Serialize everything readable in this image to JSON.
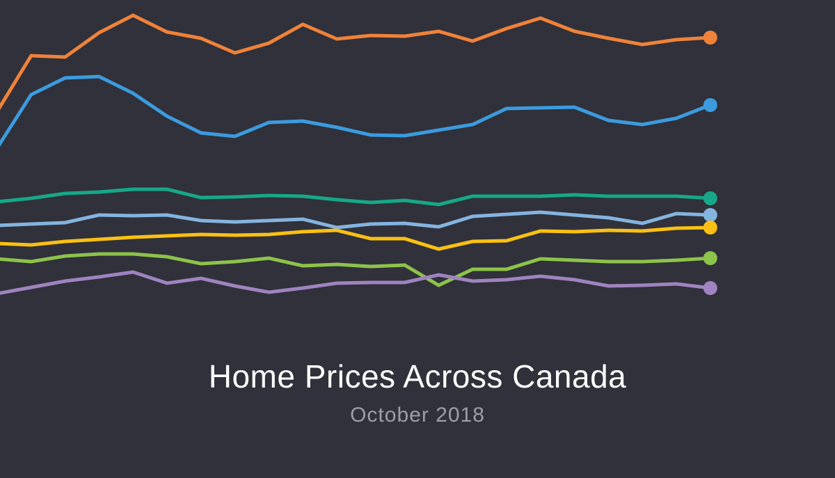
{
  "background": "#30313a",
  "title": "Home Prices Across Canada",
  "subtitle": "October 2018",
  "chart_data": {
    "type": "line",
    "title": "Home Prices Across Canada",
    "subtitle": "October 2018",
    "xlabel": "",
    "ylabel": "",
    "x": [
      0,
      1,
      2,
      3,
      4,
      5,
      6,
      7,
      8,
      9,
      10,
      11,
      12,
      13,
      14,
      15,
      16,
      17,
      18,
      19,
      20,
      21
    ],
    "ylim": [
      0,
      100
    ],
    "grid": false,
    "legend": "none",
    "series": [
      {
        "color": "#f0823a",
        "values": [
          68,
          84,
          83.6,
          90.6,
          95.6,
          90.8,
          89,
          84.8,
          87.6,
          93,
          88.8,
          89.8,
          89.6,
          91,
          88.2,
          91.8,
          94.8,
          91,
          89,
          87.2,
          88.6,
          89.2
        ]
      },
      {
        "color": "#3c9bdf",
        "values": [
          57.5,
          72.8,
          77.6,
          78,
          73.2,
          66.6,
          61.8,
          60.8,
          64.8,
          65.2,
          63.4,
          61.2,
          61,
          62.6,
          64.2,
          68.8,
          69,
          69.2,
          65.4,
          64.2,
          66,
          69.8
        ]
      },
      {
        "color": "#16a888",
        "values": [
          42,
          43,
          44.4,
          44.8,
          45.6,
          45.6,
          43.2,
          43.4,
          43.8,
          43.6,
          42.6,
          41.8,
          42.4,
          41.2,
          43.6,
          43.6,
          43.6,
          44,
          43.6,
          43.6,
          43.6,
          43
        ]
      },
      {
        "color": "#84b4e0",
        "values": [
          35.2,
          35.6,
          36,
          38.2,
          38,
          38.2,
          36.6,
          36.2,
          36.6,
          37,
          34.6,
          35.6,
          35.8,
          34.8,
          37.8,
          38.4,
          39,
          38.2,
          37.4,
          35.8,
          38.6,
          38.2
        ]
      },
      {
        "color": "#fbc013",
        "values": [
          30,
          29.6,
          30.6,
          31.2,
          31.8,
          32.2,
          32.6,
          32.4,
          32.6,
          33.4,
          33.8,
          31.4,
          31.4,
          28.4,
          30.6,
          30.8,
          33.6,
          33.4,
          33.8,
          33.6,
          34.4,
          34.6
        ]
      },
      {
        "color": "#8dc34a",
        "values": [
          25.6,
          24.8,
          26.4,
          27,
          27,
          26.2,
          24.2,
          24.8,
          25.8,
          23.6,
          24,
          23.4,
          23.8,
          18,
          22.6,
          22.6,
          25.6,
          25.2,
          24.8,
          24.8,
          25.2,
          25.8
        ]
      },
      {
        "color": "#a083c0",
        "values": [
          15.6,
          17.4,
          19.2,
          20.4,
          21.8,
          18.6,
          20,
          17.8,
          16,
          17.2,
          18.6,
          18.8,
          18.8,
          21,
          19.2,
          19.6,
          20.6,
          19.6,
          17.8,
          18,
          18.4,
          17.2
        ]
      }
    ]
  }
}
